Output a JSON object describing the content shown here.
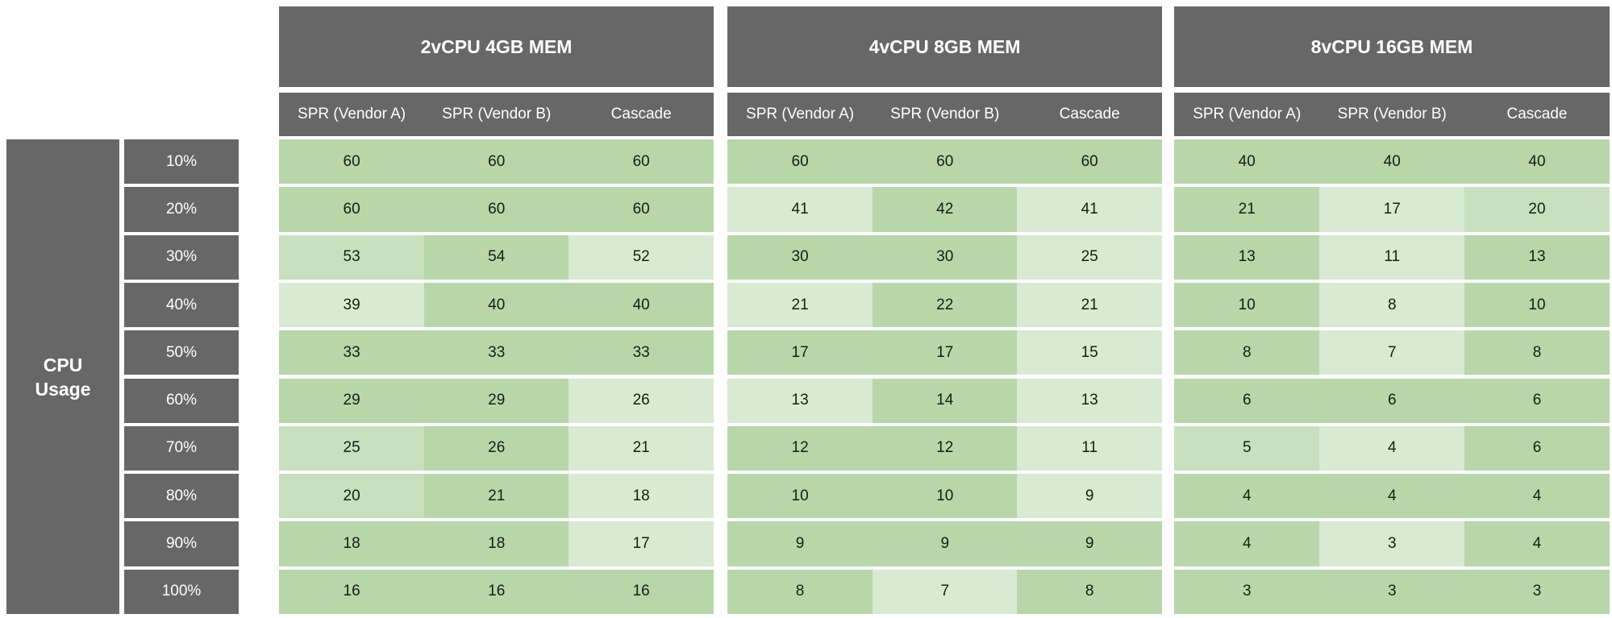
{
  "chart_data": {
    "type": "table",
    "title": "",
    "row_axis_label": "CPU Usage",
    "row_axis_label_lines": [
      "CPU",
      "Usage"
    ],
    "rows": [
      "10%",
      "20%",
      "30%",
      "40%",
      "50%",
      "60%",
      "70%",
      "80%",
      "90%",
      "100%"
    ],
    "groups": [
      {
        "name": "2vCPU 4GB MEM",
        "columns": [
          "SPR (Vendor A)",
          "SPR (Vendor B)",
          "Cascade"
        ],
        "values": [
          [
            60,
            60,
            60
          ],
          [
            60,
            60,
            60
          ],
          [
            53,
            54,
            52
          ],
          [
            39,
            40,
            40
          ],
          [
            33,
            33,
            33
          ],
          [
            29,
            29,
            26
          ],
          [
            25,
            26,
            21
          ],
          [
            20,
            21,
            18
          ],
          [
            18,
            18,
            17
          ],
          [
            16,
            16,
            16
          ]
        ]
      },
      {
        "name": "4vCPU 8GB MEM",
        "columns": [
          "SPR (Vendor A)",
          "SPR (Vendor B)",
          "Cascade"
        ],
        "values": [
          [
            60,
            60,
            60
          ],
          [
            41,
            42,
            41
          ],
          [
            30,
            30,
            25
          ],
          [
            21,
            22,
            21
          ],
          [
            17,
            17,
            15
          ],
          [
            13,
            14,
            13
          ],
          [
            12,
            12,
            11
          ],
          [
            10,
            10,
            9
          ],
          [
            9,
            9,
            9
          ],
          [
            8,
            7,
            8
          ]
        ]
      },
      {
        "name": "8vCPU 16GB MEM",
        "columns": [
          "SPR (Vendor A)",
          "SPR (Vendor B)",
          "Cascade"
        ],
        "values": [
          [
            40,
            40,
            40
          ],
          [
            21,
            17,
            20
          ],
          [
            13,
            11,
            13
          ],
          [
            10,
            8,
            10
          ],
          [
            8,
            7,
            8
          ],
          [
            6,
            6,
            6
          ],
          [
            5,
            4,
            6
          ],
          [
            4,
            4,
            4
          ],
          [
            4,
            3,
            4
          ],
          [
            3,
            3,
            3
          ]
        ]
      }
    ],
    "colors": {
      "header": "#676767",
      "header_text": "#ffffff",
      "cell_max": "#b7d7a8",
      "cell_mid": "#c8e0be",
      "cell_low": "#d9ead3"
    }
  }
}
